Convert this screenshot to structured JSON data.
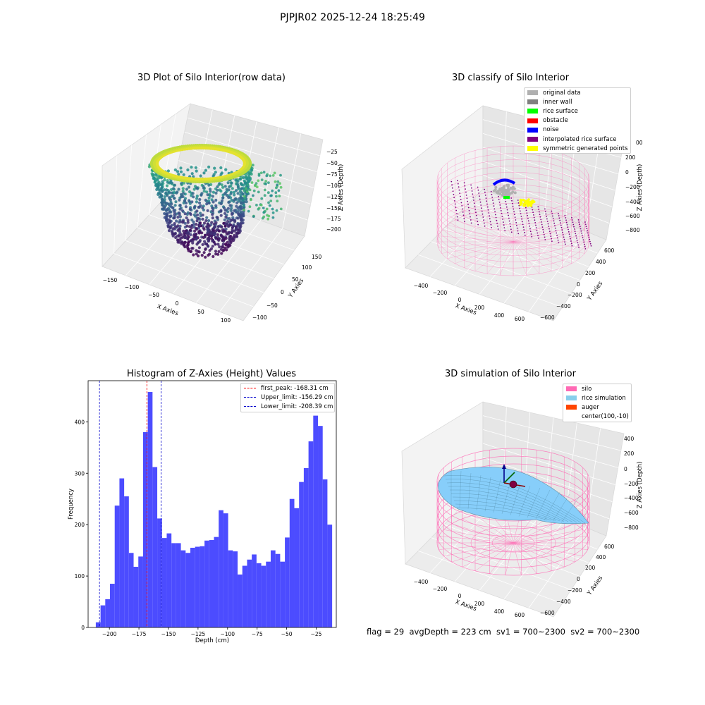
{
  "figure": {
    "suptitle": "PJPJR02 2025-12-24 18:25:49",
    "footer": "flag = 29  avgDepth = 223 cm  sv1 = 700~2300  sv2 = 700~2300"
  },
  "colors": {
    "hist_bar": "#4c4cff",
    "first_peak": "#ff0000",
    "limit": "#0000cc",
    "silo": "#ff69b4",
    "rice": "#87cefa"
  },
  "chart_data": [
    {
      "type": "scatter",
      "title": "3D Plot of Silo Interior(row data)",
      "projection": "3d",
      "xlabel": "X Axies",
      "ylabel": "Y Axies",
      "zlabel": "Z Axies (Depth)",
      "xticks": [
        "−150",
        "−100",
        "−50",
        "0",
        "50",
        "100"
      ],
      "yticks": [
        "−100",
        "−50",
        "0",
        "50",
        "100",
        "150"
      ],
      "zticks": [
        "−25",
        "−50",
        "−75",
        "−100",
        "−125",
        "−150",
        "−175",
        "−200"
      ],
      "colormap": "viridis"
    },
    {
      "type": "scatter",
      "title": "3D classify of Silo Interior",
      "projection": "3d",
      "xlabel": "X Axies",
      "ylabel": "Y Axies",
      "zlabel": "Z Axies (Depth)",
      "xticks": [
        "−400",
        "−200",
        "0",
        "200",
        "400",
        "600"
      ],
      "yticks": [
        "−600",
        "−400",
        "−200",
        "0",
        "200",
        "400",
        "600"
      ],
      "zticks": [
        "200",
        "0",
        "−200",
        "−400",
        "−600",
        "−800"
      ],
      "zticks_partial": "00",
      "legend": [
        {
          "label": "original data",
          "color": "#b0b0b0"
        },
        {
          "label": "inner wall",
          "color": "#808080"
        },
        {
          "label": "rice surface",
          "color": "#00ff00"
        },
        {
          "label": "obstacle",
          "color": "#ff0000"
        },
        {
          "label": "noise",
          "color": "#0000ff"
        },
        {
          "label": "interpolated rice surface",
          "color": "#800080"
        },
        {
          "label": "symmetric generated points",
          "color": "#ffff00"
        }
      ]
    },
    {
      "type": "bar",
      "title": "Histogram of Z-Axies (Height) Values",
      "xlabel": "Depth (cm)",
      "ylabel": "Frequency",
      "xlim": [
        -218,
        -8
      ],
      "ylim": [
        0,
        480
      ],
      "xticks": [
        -200,
        -175,
        -150,
        -125,
        -100,
        -75,
        -50,
        -25
      ],
      "xtick_labels": [
        "−200",
        "−175",
        "−150",
        "−125",
        "−100",
        "−75",
        "−50",
        "−25"
      ],
      "yticks": [
        0,
        100,
        200,
        300,
        400
      ],
      "bin_start": -211.5,
      "bin_width": 4.0,
      "values": [
        10,
        43,
        55,
        85,
        237,
        290,
        255,
        145,
        118,
        138,
        380,
        458,
        312,
        212,
        174,
        183,
        164,
        164,
        150,
        145,
        155,
        157,
        158,
        169,
        170,
        176,
        228,
        222,
        150,
        148,
        103,
        120,
        132,
        142,
        125,
        120,
        128,
        150,
        143,
        128,
        175,
        250,
        232,
        283,
        310,
        362,
        412,
        392,
        288,
        200
      ],
      "vlines": [
        {
          "label": "first_peak: -168.31 cm",
          "x": -168.31,
          "color": "#ff0000"
        },
        {
          "label": "Upper_limit: -156.29 cm",
          "x": -156.29,
          "color": "#0000cc"
        },
        {
          "label": "Lower_limit: -208.39 cm",
          "x": -208.39,
          "color": "#0000cc"
        }
      ]
    },
    {
      "type": "area",
      "title": "3D simulation of Silo Interior",
      "projection": "3d",
      "xlabel": "X Axies",
      "ylabel": "Y Axies",
      "zlabel": "Z Axies (Depth)",
      "xticks": [
        "−400",
        "−200",
        "0",
        "200",
        "400",
        "600"
      ],
      "yticks": [
        "−600",
        "−400",
        "−200",
        "0",
        "200",
        "400",
        "600"
      ],
      "zticks": [
        "400",
        "200",
        "0",
        "−200",
        "−400",
        "−600",
        "−800"
      ],
      "legend": [
        {
          "label": "silo",
          "color": "#ff69b4"
        },
        {
          "label": "rice simulation",
          "color": "#87ceeb"
        },
        {
          "label": "auger",
          "color": "#ff4500"
        },
        {
          "label": "center(100,-10)",
          "color": ""
        }
      ]
    }
  ]
}
